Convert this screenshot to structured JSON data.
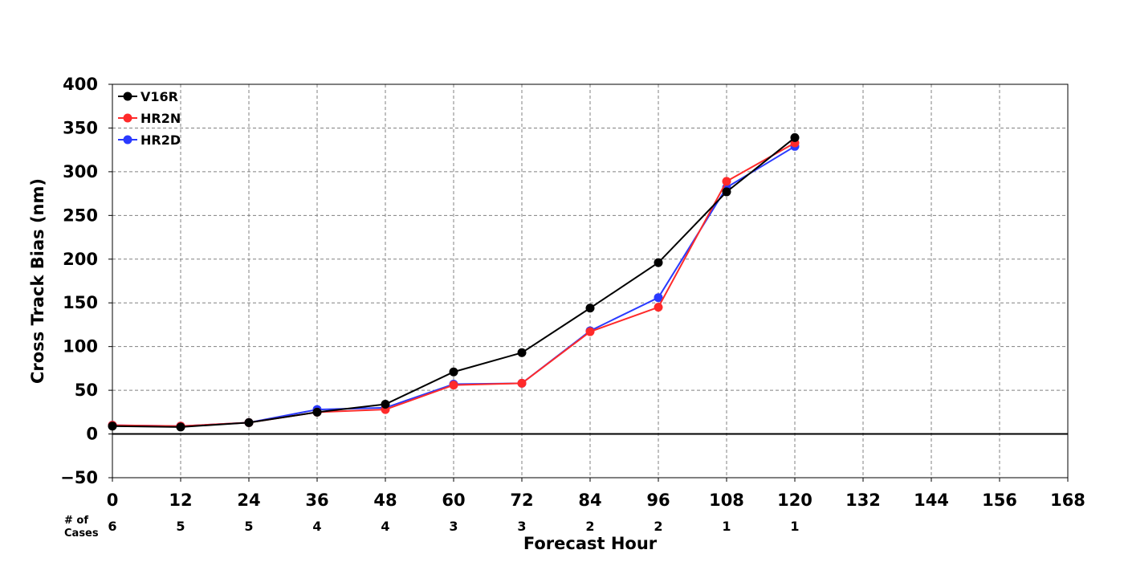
{
  "chart_data": {
    "type": "line",
    "xlabel": "Forecast Hour",
    "ylabel": "Cross Track Bias (nm)",
    "x_ticks": [
      0,
      12,
      24,
      36,
      48,
      60,
      72,
      84,
      96,
      108,
      120,
      132,
      144,
      156,
      168
    ],
    "y_ticks": [
      -50,
      0,
      50,
      100,
      150,
      200,
      250,
      300,
      350,
      400
    ],
    "xlim": [
      0,
      168
    ],
    "ylim": [
      -50,
      400
    ],
    "grid": true,
    "legend_position": "top-left",
    "cases_label_line1": "# of",
    "cases_label_line2": "Cases",
    "cases_x": [
      0,
      12,
      24,
      36,
      48,
      60,
      72,
      84,
      96,
      108,
      120
    ],
    "cases": [
      "6",
      "5",
      "5",
      "4",
      "4",
      "3",
      "3",
      "2",
      "2",
      "1",
      "1"
    ],
    "series": [
      {
        "name": "V16R",
        "color": "#000000",
        "x": [
          0,
          12,
          24,
          36,
          48,
          60,
          72,
          84,
          96,
          108,
          120
        ],
        "y": [
          9,
          8,
          13,
          25,
          34,
          71,
          93,
          144,
          196,
          277,
          339
        ]
      },
      {
        "name": "HR2N",
        "color": "#ff2a2a",
        "x": [
          0,
          12,
          24,
          36,
          48,
          60,
          72,
          84,
          96,
          108,
          120
        ],
        "y": [
          10,
          9,
          13,
          25,
          28,
          56,
          58,
          117,
          145,
          289,
          333
        ]
      },
      {
        "name": "HR2D",
        "color": "#2a3aff",
        "x": [
          0,
          12,
          24,
          36,
          48,
          60,
          72,
          84,
          96,
          108,
          120
        ],
        "y": [
          10,
          9,
          13,
          28,
          30,
          57,
          58,
          118,
          156,
          282,
          329
        ]
      }
    ]
  }
}
